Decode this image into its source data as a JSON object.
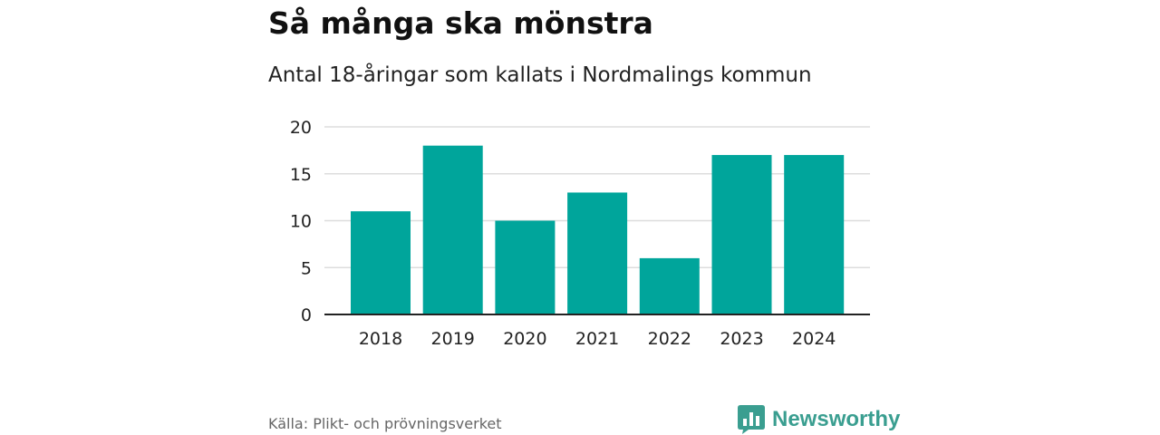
{
  "header": {
    "title": "Så många ska mönstra",
    "subtitle": "Antal 18-åringar som kallats i Nordmalings kommun"
  },
  "footer": {
    "source": "Källa: Plikt- och prövningsverket",
    "brand": "Newsworthy",
    "brand_icon": "bar-chart-speech-bubble-icon"
  },
  "colors": {
    "bar": "#00a59b",
    "grid": "#dddddd",
    "axis": "#222222",
    "brand": "#3a9e90"
  },
  "chart_data": {
    "type": "bar",
    "categories": [
      "2018",
      "2019",
      "2020",
      "2021",
      "2022",
      "2023",
      "2024"
    ],
    "values": [
      11,
      18,
      10,
      13,
      6,
      17,
      17
    ],
    "ylim": [
      0,
      20
    ],
    "yticks": [
      "0",
      "5",
      "10",
      "15",
      "20"
    ],
    "grid": true,
    "legend": "none",
    "xlabel": "",
    "ylabel": ""
  }
}
